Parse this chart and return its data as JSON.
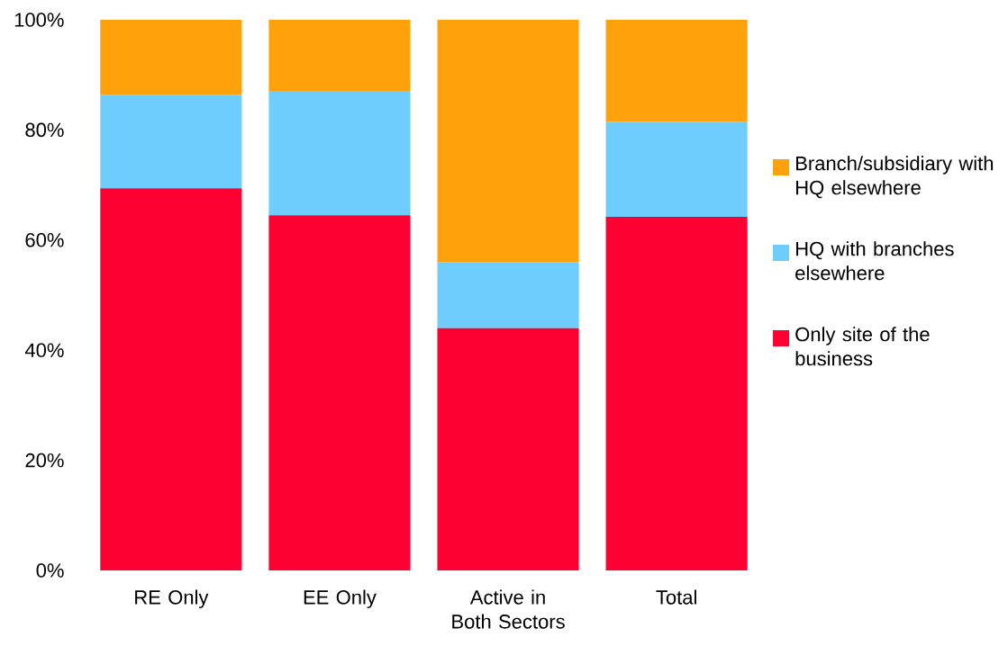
{
  "chart_data": {
    "type": "bar",
    "stacked": true,
    "categories": [
      "RE Only",
      "EE Only",
      "Active in Both Sectors",
      "Total"
    ],
    "series": [
      {
        "name": "Only site of the business",
        "color": "#ff0033",
        "values": [
          69.4,
          64.5,
          44.0,
          64.2
        ]
      },
      {
        "name": "HQ with branches elsewhere",
        "color": "#6fcdfd",
        "values": [
          17.0,
          22.6,
          12.0,
          17.3
        ]
      },
      {
        "name": "Branch/subsidiary with HQ elsewhere",
        "color": "#ffa10a",
        "values": [
          13.6,
          12.9,
          44.0,
          18.5
        ]
      }
    ],
    "ylim": [
      0,
      100
    ],
    "yticks": [
      {
        "value": 0,
        "label": "0%"
      },
      {
        "value": 20,
        "label": "20%"
      },
      {
        "value": 40,
        "label": "40%"
      },
      {
        "value": 60,
        "label": "60%"
      },
      {
        "value": 80,
        "label": "80%"
      },
      {
        "value": 100,
        "label": "100%"
      }
    ],
    "legend": "right"
  }
}
